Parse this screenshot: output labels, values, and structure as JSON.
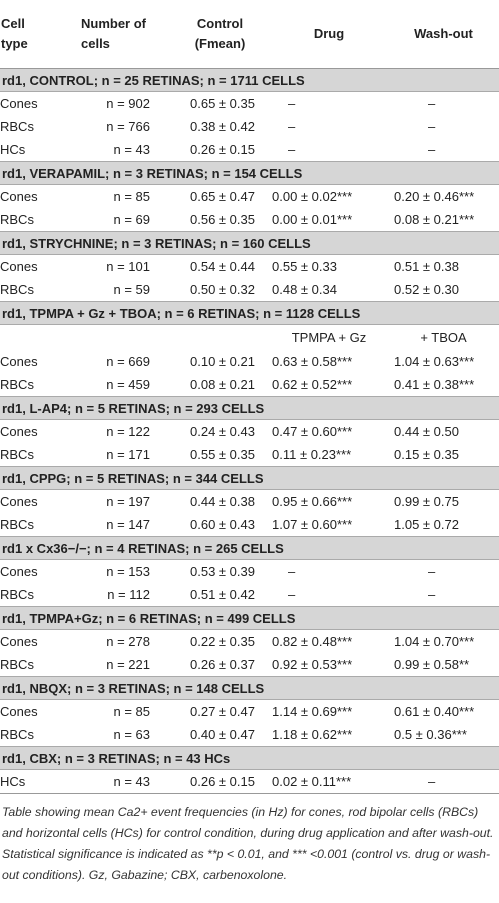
{
  "table": {
    "header": [
      [
        "Cell",
        "type"
      ],
      [
        "Number of",
        "cells"
      ],
      [
        "Control",
        "(Fmean)"
      ],
      [
        "Drug"
      ],
      [
        "Wash-out"
      ]
    ],
    "sections": [
      {
        "title": "rd1, CONTROL; n = 25 RETINAS; n = 1711 CELLS",
        "rows": [
          [
            "Cones",
            "n = 902",
            "0.65 ± 0.35",
            "–",
            "–"
          ],
          [
            "RBCs",
            "n = 766",
            "0.38 ± 0.42",
            "–",
            "–"
          ],
          [
            "HCs",
            "n = 43",
            "0.26 ± 0.15",
            "–",
            "–"
          ]
        ]
      },
      {
        "title": "rd1, VERAPAMIL; n = 3 RETINAS; n = 154 CELLS",
        "rows": [
          [
            "Cones",
            "n = 85",
            "0.65 ± 0.47",
            "0.00 ± 0.02***",
            "0.20 ± 0.46***"
          ],
          [
            "RBCs",
            "n = 69",
            "0.56 ± 0.35",
            "0.00 ± 0.01***",
            "0.08 ± 0.21***"
          ]
        ]
      },
      {
        "title": "rd1, STRYCHNINE; n = 3 RETINAS; n = 160 CELLS",
        "rows": [
          [
            "Cones",
            "n = 101",
            "0.54 ± 0.44",
            "0.55 ± 0.33",
            "0.51 ± 0.38"
          ],
          [
            "RBCs",
            "n = 59",
            "0.50 ± 0.32",
            "0.48 ± 0.34",
            "0.52 ± 0.30"
          ]
        ]
      },
      {
        "title": "rd1, TPMPA + Gz + TBOA; n = 6 RETINAS; n = 1128 CELLS",
        "subheader": [
          "TPMPA + Gz",
          "+ TBOA"
        ],
        "rows": [
          [
            "Cones",
            "n = 669",
            "0.10 ± 0.21",
            "0.63 ± 0.58***",
            "1.04 ± 0.63***"
          ],
          [
            "RBCs",
            "n = 459",
            "0.08 ± 0.21",
            "0.62 ± 0.52***",
            "0.41 ± 0.38***"
          ]
        ]
      },
      {
        "title": "rd1, L-AP4; n = 5 RETINAS; n = 293 CELLS",
        "rows": [
          [
            "Cones",
            "n = 122",
            "0.24 ± 0.43",
            "0.47 ± 0.60***",
            "0.44 ± 0.50"
          ],
          [
            "RBCs",
            "n = 171",
            "0.55 ± 0.35",
            "0.11 ± 0.23***",
            "0.15 ± 0.35"
          ]
        ]
      },
      {
        "title": "rd1, CPPG; n = 5 RETINAS; n = 344 CELLS",
        "rows": [
          [
            "Cones",
            "n = 197",
            "0.44 ± 0.38",
            "0.95 ± 0.66***",
            "0.99 ± 0.75"
          ],
          [
            "RBCs",
            "n = 147",
            "0.60 ± 0.43",
            "1.07 ± 0.60***",
            "1.05 ± 0.72"
          ]
        ]
      },
      {
        "title": "rd1 x Cx36−/−; n = 4 RETINAS; n = 265 CELLS",
        "rows": [
          [
            "Cones",
            "n = 153",
            "0.53 ± 0.39",
            "–",
            "–"
          ],
          [
            "RBCs",
            "n = 112",
            "0.51 ± 0.42",
            "–",
            "–"
          ]
        ]
      },
      {
        "title": "rd1, TPMPA+Gz; n = 6 RETINAS; n = 499 CELLS",
        "rows": [
          [
            "Cones",
            "n = 278",
            "0.22 ± 0.35",
            "0.82 ± 0.48***",
            "1.04 ± 0.70***"
          ],
          [
            "RBCs",
            "n = 221",
            "0.26 ± 0.37",
            "0.92 ± 0.53***",
            "0.99 ± 0.58**"
          ]
        ]
      },
      {
        "title": "rd1, NBQX; n = 3 RETINAS; n = 148 CELLS",
        "rows": [
          [
            "Cones",
            "n = 85",
            "0.27 ± 0.47",
            "1.14 ± 0.69***",
            "0.61 ± 0.40***"
          ],
          [
            "RBCs",
            "n = 63",
            "0.40 ± 0.47",
            "1.18 ± 0.62***",
            "0.5 ± 0.36***"
          ]
        ]
      },
      {
        "title": "rd1, CBX; n = 3 RETINAS; n = 43 HCs",
        "rows": [
          [
            "HCs",
            "n = 43",
            "0.26 ± 0.15",
            "0.02 ± 0.11***",
            "–"
          ]
        ]
      }
    ],
    "caption": "Table showing mean Ca2+ event frequencies (in Hz) for cones, rod bipolar cells (RBCs) and horizontal cells (HCs) for control condition, during drug application and after wash-out. Statistical significance is indicated as **p < 0.01, and *** <0.001 (control vs. drug or wash-out conditions). Gz, Gabazine; CBX, carbenoxolone."
  }
}
